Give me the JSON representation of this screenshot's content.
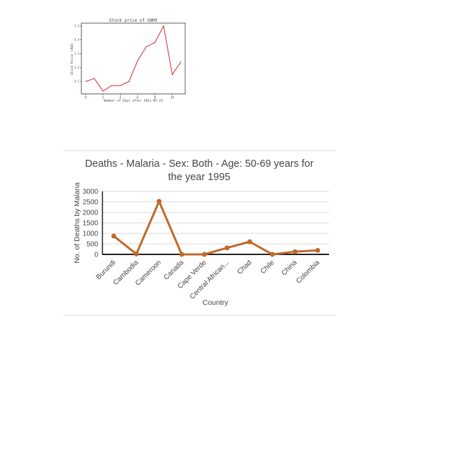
{
  "chart_data": [
    {
      "type": "line",
      "title": "Stock price of GNMX",
      "xlabel": "Number of Days after 2011-05-23",
      "ylabel": "Stock Price (USD)",
      "x": [
        0,
        1,
        2,
        3,
        4,
        5,
        6,
        7,
        8,
        9,
        10,
        11
      ],
      "values": [
        3.1,
        3.12,
        3.03,
        3.07,
        3.07,
        3.1,
        3.25,
        3.35,
        3.38,
        3.5,
        3.15,
        3.24
      ],
      "xticks": [
        "0",
        "2",
        "4",
        "6",
        "8",
        "10"
      ],
      "yticks": [
        "3.1",
        "3.2",
        "3.3",
        "3.4",
        "3.5"
      ],
      "xlim": [
        -0.5,
        11.5
      ],
      "ylim": [
        3.01,
        3.52
      ],
      "grid": false,
      "colors": {
        "line": "#d62728"
      }
    },
    {
      "type": "line",
      "title": "Deaths - Malaria - Sex: Both - Age: 50-69 years for the year 1995",
      "title_lines": [
        "Deaths - Malaria - Sex: Both - Age: 50-69 years for",
        "the year 1995"
      ],
      "xlabel": "Country",
      "ylabel": "No. of Deaths by Malaria",
      "categories": [
        "Burundi",
        "Cambodia",
        "Cameroon",
        "Canada",
        "Cape Verde",
        "Central African...",
        "Chad",
        "Chile",
        "China",
        "Colombia"
      ],
      "values": [
        870,
        20,
        2520,
        0,
        0,
        310,
        600,
        0,
        130,
        190
      ],
      "yticks": [
        "0",
        "500",
        "1000",
        "1500",
        "2000",
        "2500",
        "3000"
      ],
      "ylim": [
        0,
        3000
      ],
      "grid": true,
      "colors": {
        "line": "#c0692a",
        "grid": "#d9d9d9",
        "axis": "#000000"
      }
    }
  ]
}
